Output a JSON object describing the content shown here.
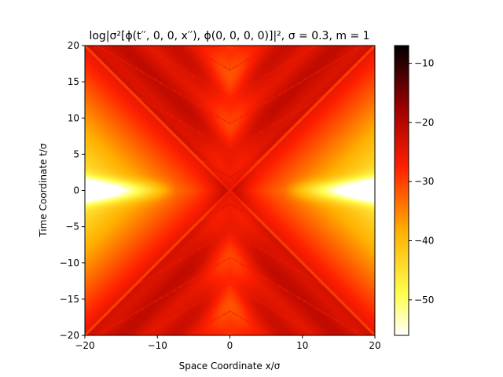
{
  "chart_data": {
    "type": "heatmap",
    "title": "log|σ²[ϕ(t′′, 0, 0, x′′), ϕ(0, 0, 0, 0)]|², σ = 0.3, m = 1",
    "xlabel": "Space Coordinate x/σ",
    "ylabel": "Time Coordinate t/σ",
    "xlim": [
      -20,
      20
    ],
    "ylim": [
      -20,
      20
    ],
    "x_ticks": [
      -20,
      -10,
      0,
      10,
      20
    ],
    "y_ticks": [
      -20,
      -15,
      -10,
      -5,
      0,
      5,
      10,
      15,
      20
    ],
    "x_tick_labels": [
      "−20",
      "−10",
      "0",
      "10",
      "20"
    ],
    "y_tick_labels": [
      "−20",
      "−15",
      "−10",
      "−5",
      "0",
      "5",
      "10",
      "15",
      "20"
    ],
    "colorbar": {
      "range": [
        -56,
        -7
      ],
      "ticks": [
        -10,
        -20,
        -30,
        -40,
        -50
      ],
      "tick_labels": [
        "−10",
        "−20",
        "−30",
        "−40",
        "−50"
      ],
      "colormap": "hot_r"
    },
    "colormap_stops": [
      "#ffffff",
      "#ffff00",
      "#ff0000",
      "#000000"
    ],
    "features": {
      "light_cone": "t = ±x",
      "bright_band": "along t = 0 for |x| > 8",
      "dark_core": "near x = 0, |t| < 5"
    }
  }
}
